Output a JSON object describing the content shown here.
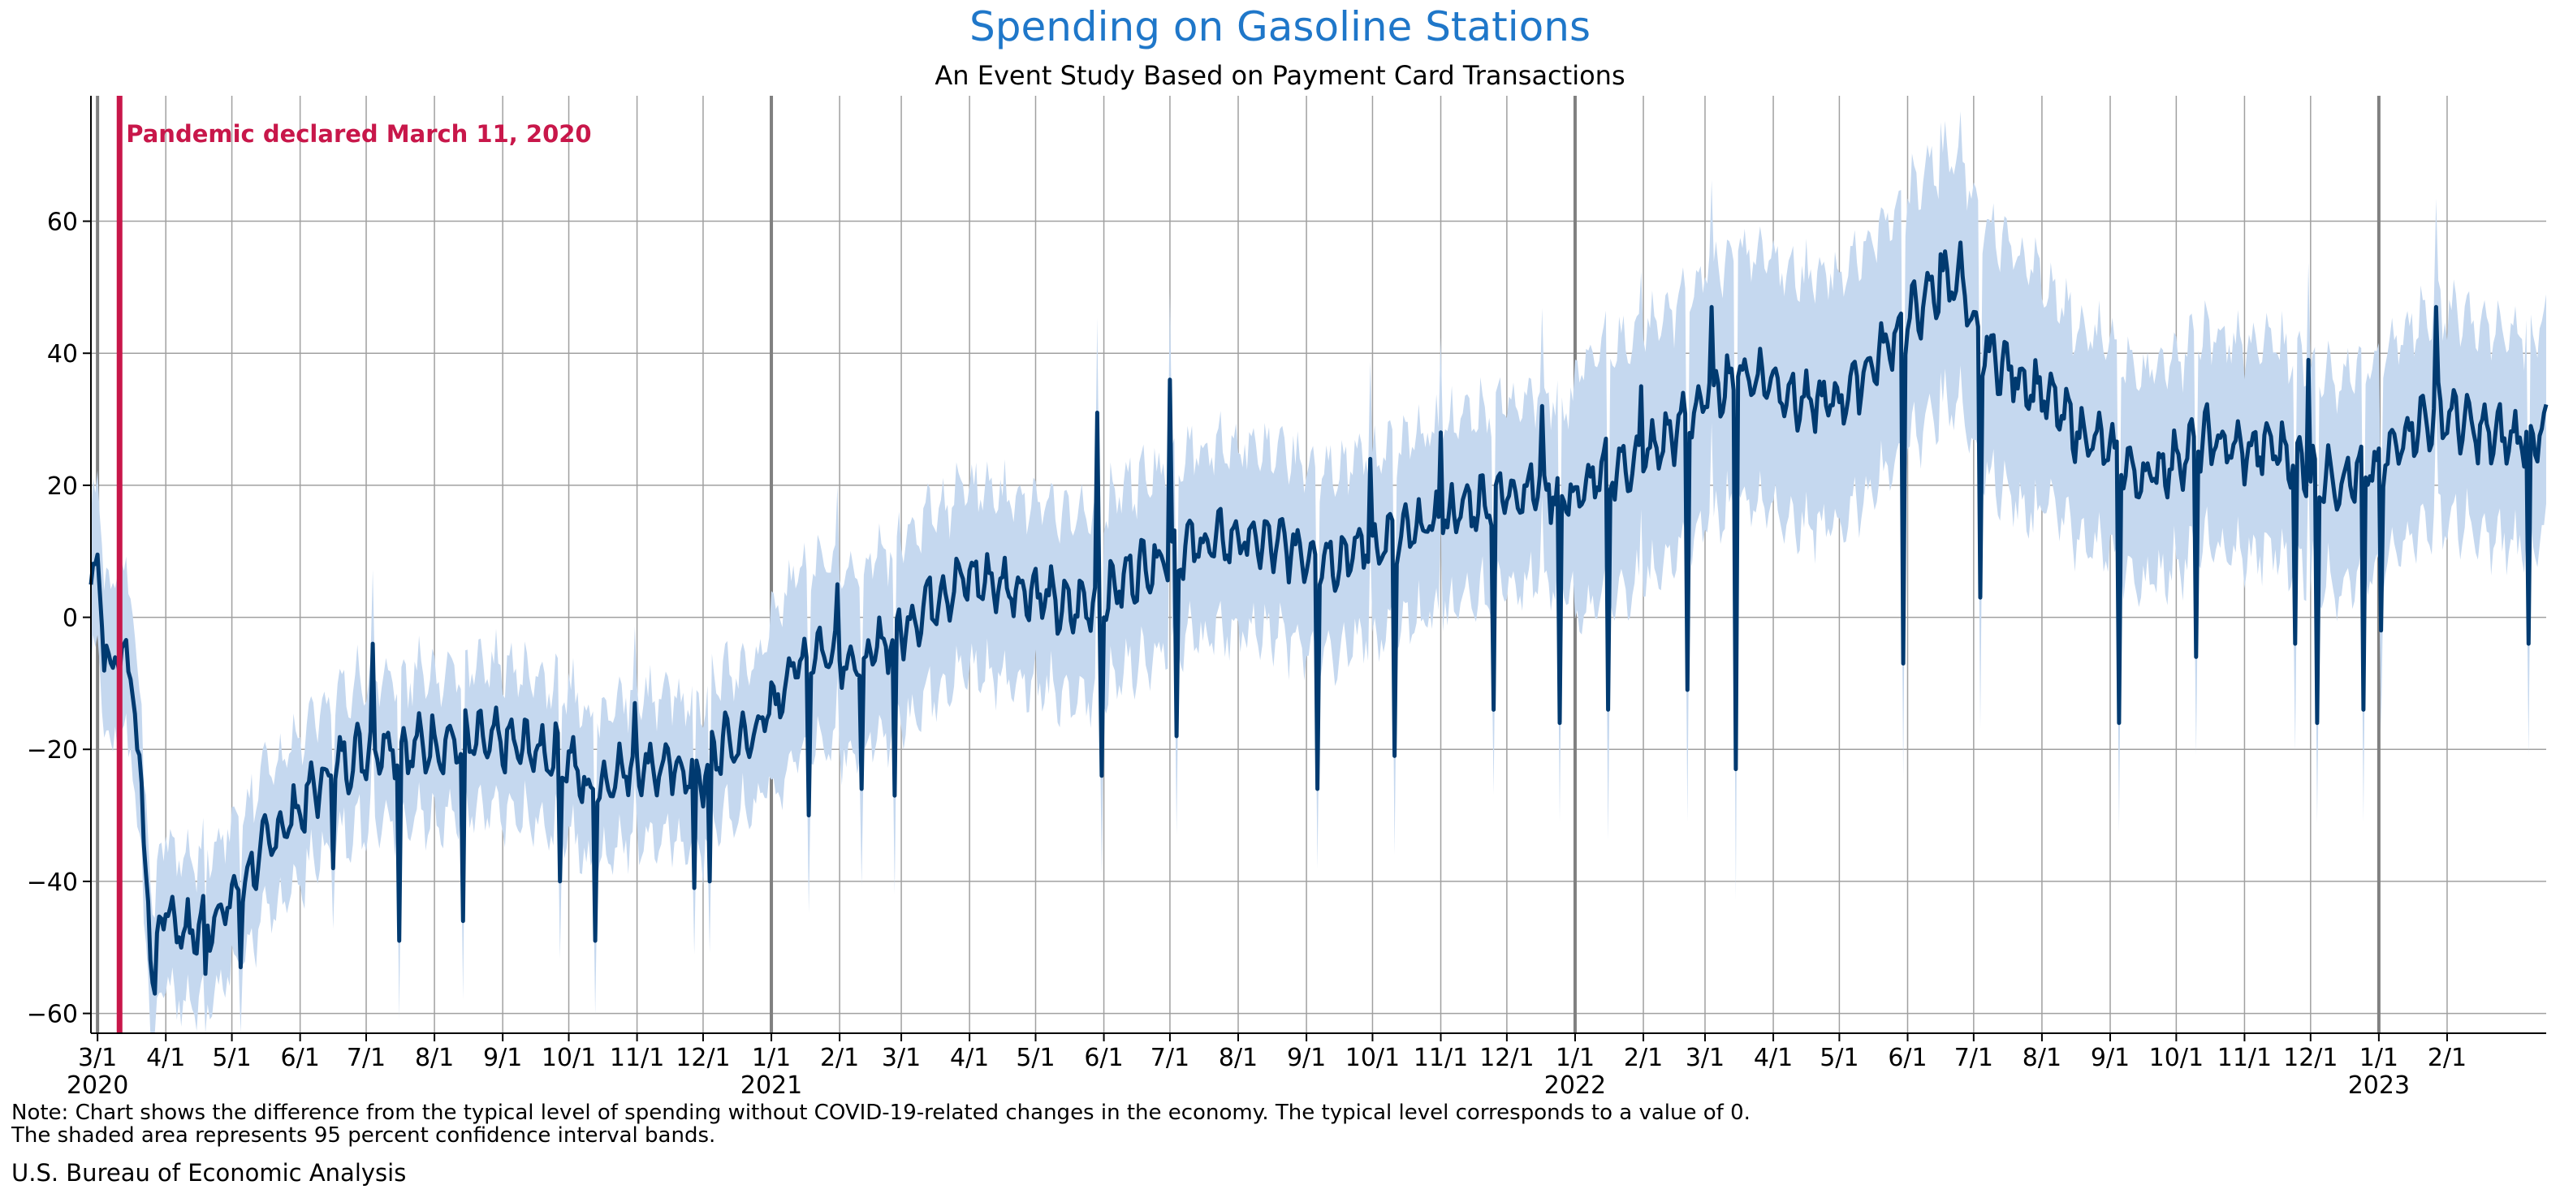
{
  "header": {
    "title": "Spending on Gasoline Stations",
    "subtitle": "An Event Study Based on Payment Card Transactions"
  },
  "annotation": {
    "text": "Pandemic declared March 11, 2020",
    "date": "2020-03-11",
    "color": "#c8174a"
  },
  "footer": {
    "note_line_1": "Note: Chart shows the difference from the typical level of spending without COVID-19-related changes in the economy. The typical level corresponds to a value of 0.",
    "note_line_2": "The shaded area represents 95 percent confidence interval bands.",
    "source": "U.S. Bureau of Economic Analysis"
  },
  "colors": {
    "title": "#1f77c9",
    "line": "#003a70",
    "band": "#c5d8ef",
    "grid": "#a0a0a0",
    "year_line": "#808080"
  },
  "chart_data": {
    "type": "line",
    "title": "Spending on Gasoline Stations",
    "subtitle": "An Event Study Based on Payment Card Transactions",
    "xlabel": "",
    "ylabel": "",
    "x_range": [
      "2020-02-27",
      "2023-03-18"
    ],
    "ylim": [
      -63,
      79
    ],
    "y_ticks": [
      -60,
      -40,
      -20,
      0,
      20,
      40,
      60
    ],
    "grid": true,
    "x_ticks": [
      {
        "date": "2020-03-01",
        "label": "3/1",
        "year": "2020"
      },
      {
        "date": "2020-04-01",
        "label": "4/1"
      },
      {
        "date": "2020-05-01",
        "label": "5/1"
      },
      {
        "date": "2020-06-01",
        "label": "6/1"
      },
      {
        "date": "2020-07-01",
        "label": "7/1"
      },
      {
        "date": "2020-08-01",
        "label": "8/1"
      },
      {
        "date": "2020-09-01",
        "label": "9/1"
      },
      {
        "date": "2020-10-01",
        "label": "10/1"
      },
      {
        "date": "2020-11-01",
        "label": "11/1"
      },
      {
        "date": "2020-12-01",
        "label": "12/1"
      },
      {
        "date": "2021-01-01",
        "label": "1/1",
        "year": "2021"
      },
      {
        "date": "2021-02-01",
        "label": "2/1"
      },
      {
        "date": "2021-03-01",
        "label": "3/1"
      },
      {
        "date": "2021-04-01",
        "label": "4/1"
      },
      {
        "date": "2021-05-01",
        "label": "5/1"
      },
      {
        "date": "2021-06-01",
        "label": "6/1"
      },
      {
        "date": "2021-07-01",
        "label": "7/1"
      },
      {
        "date": "2021-08-01",
        "label": "8/1"
      },
      {
        "date": "2021-09-01",
        "label": "9/1"
      },
      {
        "date": "2021-10-01",
        "label": "10/1"
      },
      {
        "date": "2021-11-01",
        "label": "11/1"
      },
      {
        "date": "2021-12-01",
        "label": "12/1"
      },
      {
        "date": "2022-01-01",
        "label": "1/1",
        "year": "2022"
      },
      {
        "date": "2022-02-01",
        "label": "2/1"
      },
      {
        "date": "2022-03-01",
        "label": "3/1"
      },
      {
        "date": "2022-04-01",
        "label": "4/1"
      },
      {
        "date": "2022-05-01",
        "label": "5/1"
      },
      {
        "date": "2022-06-01",
        "label": "6/1"
      },
      {
        "date": "2022-07-01",
        "label": "7/1"
      },
      {
        "date": "2022-08-01",
        "label": "8/1"
      },
      {
        "date": "2022-09-01",
        "label": "9/1"
      },
      {
        "date": "2022-10-01",
        "label": "10/1"
      },
      {
        "date": "2022-11-01",
        "label": "11/1"
      },
      {
        "date": "2022-12-01",
        "label": "12/1"
      },
      {
        "date": "2023-01-01",
        "label": "1/1",
        "year": "2023"
      },
      {
        "date": "2023-02-01",
        "label": "2/1"
      }
    ],
    "series": [
      {
        "kind": "estimate",
        "points": [
          [
            "2020-02-27",
            5
          ],
          [
            "2020-03-01",
            10
          ],
          [
            "2020-03-04",
            -5
          ],
          [
            "2020-03-07",
            -8
          ],
          [
            "2020-03-10",
            -6
          ],
          [
            "2020-03-13",
            -4
          ],
          [
            "2020-03-16",
            -9
          ],
          [
            "2020-03-18",
            -12
          ],
          [
            "2020-03-20",
            -24
          ],
          [
            "2020-03-23",
            -38
          ],
          [
            "2020-03-26",
            -55
          ],
          [
            "2020-03-30",
            -44
          ],
          [
            "2020-04-05",
            -46
          ],
          [
            "2020-04-12",
            -48
          ],
          [
            "2020-04-20",
            -46
          ],
          [
            "2020-04-28",
            -44
          ],
          [
            "2020-05-05",
            -41
          ],
          [
            "2020-05-12",
            -37
          ],
          [
            "2020-05-20",
            -33
          ],
          [
            "2020-06-01",
            -29
          ],
          [
            "2020-06-10",
            -25
          ],
          [
            "2020-06-20",
            -22
          ],
          [
            "2020-07-01",
            -20
          ],
          [
            "2020-07-10",
            -19
          ],
          [
            "2020-07-20",
            -20
          ],
          [
            "2020-08-01",
            -19
          ],
          [
            "2020-08-15",
            -19
          ],
          [
            "2020-09-01",
            -19
          ],
          [
            "2020-09-15",
            -20
          ],
          [
            "2020-10-01",
            -21
          ],
          [
            "2020-10-10",
            -27
          ],
          [
            "2020-10-20",
            -24
          ],
          [
            "2020-11-01",
            -22
          ],
          [
            "2020-11-15",
            -23
          ],
          [
            "2020-12-01",
            -24
          ],
          [
            "2020-12-10",
            -19
          ],
          [
            "2020-12-20",
            -19
          ],
          [
            "2021-01-01",
            -14
          ],
          [
            "2021-01-10",
            -8
          ],
          [
            "2021-01-20",
            -5
          ],
          [
            "2021-02-01",
            -5
          ],
          [
            "2021-02-10",
            -8
          ],
          [
            "2021-02-20",
            -4
          ],
          [
            "2021-03-01",
            -2
          ],
          [
            "2021-03-15",
            3
          ],
          [
            "2021-04-01",
            6
          ],
          [
            "2021-04-15",
            5
          ],
          [
            "2021-05-01",
            4
          ],
          [
            "2021-05-15",
            1
          ],
          [
            "2021-06-01",
            3
          ],
          [
            "2021-06-15",
            7
          ],
          [
            "2021-07-01",
            10
          ],
          [
            "2021-07-15",
            11
          ],
          [
            "2021-08-01",
            12
          ],
          [
            "2021-08-15",
            11
          ],
          [
            "2021-09-01",
            10
          ],
          [
            "2021-09-15",
            9
          ],
          [
            "2021-10-01",
            11
          ],
          [
            "2021-10-15",
            12
          ],
          [
            "2021-11-01",
            15
          ],
          [
            "2021-11-15",
            17
          ],
          [
            "2021-12-01",
            19
          ],
          [
            "2021-12-15",
            20
          ],
          [
            "2022-01-01",
            18
          ],
          [
            "2022-01-15",
            22
          ],
          [
            "2022-02-01",
            24
          ],
          [
            "2022-02-15",
            28
          ],
          [
            "2022-03-01",
            33
          ],
          [
            "2022-03-15",
            37
          ],
          [
            "2022-04-01",
            36
          ],
          [
            "2022-04-15",
            32
          ],
          [
            "2022-05-01",
            33
          ],
          [
            "2022-05-15",
            38
          ],
          [
            "2022-06-01",
            45
          ],
          [
            "2022-06-15",
            50
          ],
          [
            "2022-06-25",
            52
          ],
          [
            "2022-07-01",
            42
          ],
          [
            "2022-07-15",
            38
          ],
          [
            "2022-08-01",
            34
          ],
          [
            "2022-08-15",
            29
          ],
          [
            "2022-09-01",
            25
          ],
          [
            "2022-09-15",
            21
          ],
          [
            "2022-10-01",
            24
          ],
          [
            "2022-10-15",
            27
          ],
          [
            "2022-11-01",
            25
          ],
          [
            "2022-11-15",
            26
          ],
          [
            "2022-12-01",
            22
          ],
          [
            "2022-12-15",
            21
          ],
          [
            "2023-01-01",
            22
          ],
          [
            "2023-01-15",
            29
          ],
          [
            "2023-02-01",
            31
          ],
          [
            "2023-02-15",
            28
          ],
          [
            "2023-03-01",
            27
          ],
          [
            "2023-03-18",
            28
          ]
        ],
        "dips": [
          [
            "2020-03-27",
            -57
          ],
          [
            "2020-04-19",
            -54
          ],
          [
            "2020-05-05",
            -53
          ],
          [
            "2020-06-16",
            -38
          ],
          [
            "2020-07-16",
            -49
          ],
          [
            "2020-08-14",
            -46
          ],
          [
            "2020-09-27",
            -40
          ],
          [
            "2020-10-13",
            -49
          ],
          [
            "2020-11-27",
            -41
          ],
          [
            "2020-12-04",
            -40
          ],
          [
            "2021-01-18",
            -30
          ],
          [
            "2021-02-11",
            -26
          ],
          [
            "2021-02-26",
            -27
          ],
          [
            "2021-05-31",
            -24
          ],
          [
            "2021-07-04",
            -18
          ],
          [
            "2021-09-06",
            -26
          ],
          [
            "2021-10-11",
            -21
          ],
          [
            "2021-11-25",
            -14
          ],
          [
            "2021-12-25",
            -16
          ],
          [
            "2022-01-16",
            -14
          ],
          [
            "2022-02-21",
            -11
          ],
          [
            "2022-03-15",
            -23
          ],
          [
            "2022-05-30",
            -7
          ],
          [
            "2022-07-04",
            3
          ],
          [
            "2022-09-05",
            -16
          ],
          [
            "2022-10-10",
            -6
          ],
          [
            "2022-11-24",
            -4
          ],
          [
            "2022-12-04",
            -16
          ],
          [
            "2022-12-25",
            -14
          ],
          [
            "2023-01-02",
            -2
          ],
          [
            "2023-03-10",
            -4
          ]
        ],
        "spikes": [
          [
            "2020-07-04",
            -4
          ],
          [
            "2020-10-31",
            -13
          ],
          [
            "2021-01-31",
            5
          ],
          [
            "2021-05-29",
            31
          ],
          [
            "2021-07-01",
            36
          ],
          [
            "2021-09-30",
            24
          ],
          [
            "2021-11-01",
            28
          ],
          [
            "2021-12-17",
            32
          ],
          [
            "2022-01-31",
            35
          ],
          [
            "2022-03-04",
            47
          ],
          [
            "2022-06-16",
            55
          ],
          [
            "2022-11-30",
            39
          ],
          [
            "2023-01-27",
            47
          ]
        ]
      }
    ]
  }
}
